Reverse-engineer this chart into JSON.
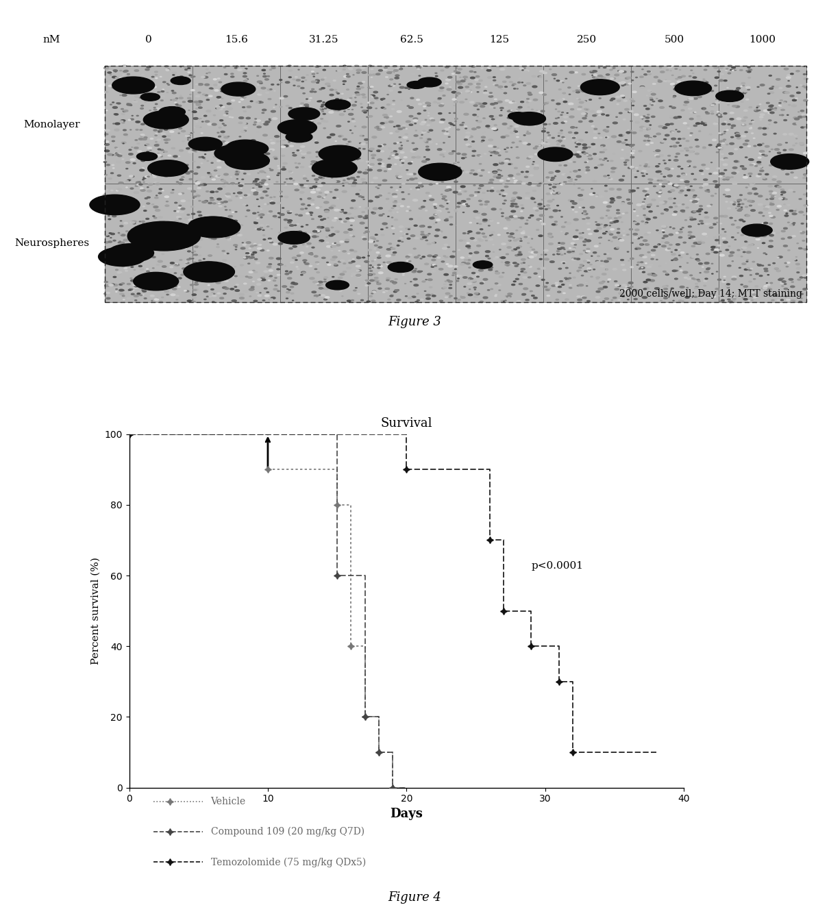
{
  "figure3": {
    "nM_labels": [
      "nM",
      "0",
      "15.6",
      "31.25",
      "62.5",
      "125",
      "250",
      "500",
      "1000"
    ],
    "row_labels": [
      "Monolayer",
      "Neurospheres"
    ],
    "caption_text": "2000 cells/well; Day 14; MTT staining",
    "fig_label": "Figure 3",
    "border_color": "#333333",
    "cell_bg": "#c8c8c8",
    "cell_dark": "#101010"
  },
  "figure4": {
    "title": "Survival",
    "xlabel": "Days",
    "ylabel": "Percent survival (%)",
    "xlim": [
      0,
      40
    ],
    "ylim": [
      0,
      100
    ],
    "xticks": [
      0,
      10,
      20,
      30,
      40
    ],
    "yticks": [
      0,
      20,
      40,
      60,
      80,
      100
    ],
    "p_value_text": "p<0.0001",
    "p_value_x": 29,
    "p_value_y": 62,
    "arrow_day": 10,
    "vehicle": {
      "label": "Vehicle",
      "x": [
        0,
        10,
        10,
        15,
        15,
        16,
        16,
        17,
        17,
        18,
        18,
        19,
        19,
        20,
        20
      ],
      "y": [
        100,
        100,
        90,
        90,
        80,
        80,
        40,
        40,
        20,
        20,
        10,
        10,
        0,
        0,
        0
      ]
    },
    "compound": {
      "label": "Compound 109 (20 mg/kg Q7D)",
      "x": [
        0,
        15,
        15,
        17,
        17,
        18,
        18,
        19,
        19,
        20,
        20
      ],
      "y": [
        100,
        100,
        60,
        60,
        20,
        20,
        10,
        10,
        0,
        0,
        0
      ]
    },
    "temozolomide": {
      "label": "Temozolomide (75 mg/kg QDx5)",
      "x": [
        0,
        20,
        20,
        26,
        26,
        27,
        27,
        29,
        29,
        31,
        31,
        32,
        32,
        38,
        38
      ],
      "y": [
        100,
        100,
        90,
        90,
        70,
        70,
        50,
        50,
        40,
        40,
        30,
        30,
        10,
        10,
        10
      ]
    },
    "fig_label": "Figure 4"
  },
  "bg_color": "#ffffff"
}
